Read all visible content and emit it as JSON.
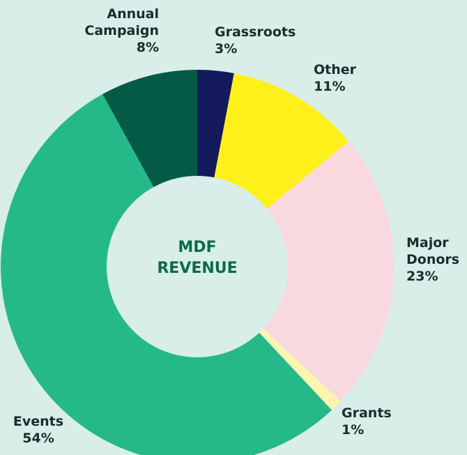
{
  "chart_data": {
    "type": "donut",
    "title": "MDF REVENUE",
    "categories": [
      "Grassroots",
      "Other",
      "Major Donors",
      "Grants",
      "Events",
      "Annual Campaign"
    ],
    "values": [
      3,
      11,
      23,
      1,
      54,
      8
    ],
    "value_labels": [
      "3%",
      "11%",
      "23%",
      "1%",
      "54%",
      "8%"
    ],
    "colors": [
      "#141a5c",
      "#fff01c",
      "#f9d9df",
      "#fdf5b0",
      "#25b98a",
      "#035b45"
    ]
  }
}
